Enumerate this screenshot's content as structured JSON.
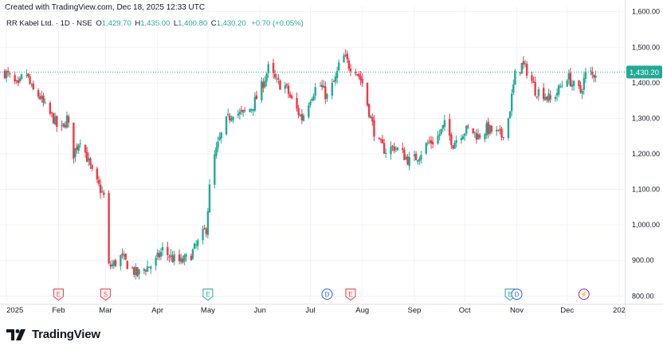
{
  "watermark_text": "Created with TradingView.com, Dec 18, 2025 12:33 UTC",
  "legend": {
    "symbol": "RR Kabel Ltd. · 1D · NSE",
    "open_label": "O",
    "open": "1,429.70",
    "high_label": "H",
    "high": "1,435.00",
    "low_label": "L",
    "low": "1,400.80",
    "close_label": "C",
    "close": "1,430.20",
    "change": "+0.70 (+0.05%)"
  },
  "footer": {
    "brand": "TradingView"
  },
  "colors": {
    "up": "#22ab94",
    "down": "#f23645",
    "last_price_line": "#22ab94",
    "grid": "#f0f3fa",
    "axis_text": "#131722"
  },
  "chart_data": {
    "type": "candlestick",
    "title": "RR Kabel Ltd. · 1D · NSE",
    "y_axis": {
      "ticks": [
        800,
        900,
        1000,
        1100,
        1200,
        1300,
        1400,
        1500,
        1600
      ],
      "tick_labels": [
        "800.00",
        "900.00",
        "1,000.00",
        "1,100.00",
        "1,200.00",
        "1,300.00",
        "1,400.00",
        "1,500.00",
        "1,600.00"
      ],
      "range": [
        785,
        1615
      ],
      "side": "right"
    },
    "x_axis": {
      "labels": [
        "2025",
        "Feb",
        "Mar",
        "Apr",
        "May",
        "Jun",
        "Jul",
        "Aug",
        "Sep",
        "Oct",
        "Nov",
        "Dec",
        "202"
      ],
      "label_dates": [
        "2025-01-01",
        "2025-02-01",
        "2025-03-01",
        "2025-04-01",
        "2025-05-01",
        "2025-06-01",
        "2025-07-01",
        "2025-08-01",
        "2025-09-01",
        "2025-10-01",
        "2025-11-01",
        "2025-12-01",
        "2026-01-01"
      ],
      "range": [
        "2024-12-31",
        "2026-01-01"
      ]
    },
    "last_price": {
      "value": 1430.2,
      "label": "1,430.20"
    },
    "events": [
      {
        "date": "2025-02-01",
        "letter": "E",
        "color": "#f23645"
      },
      {
        "date": "2025-03-01",
        "letter": "S",
        "color": "#f23645"
      },
      {
        "date": "2025-05-01",
        "letter": "E",
        "color": "#22ab94"
      },
      {
        "date": "2025-07-11",
        "letter": "D",
        "color": "#2962ff"
      },
      {
        "date": "2025-07-25",
        "letter": "E",
        "color": "#f23645"
      },
      {
        "date": "2025-10-28",
        "letter": "E",
        "color": "#22ab94"
      },
      {
        "date": "2025-11-01",
        "letter": "D",
        "color": "#2962ff"
      },
      {
        "date": "2025-12-11",
        "letter": "⚡",
        "color": "#9c27b0"
      }
    ],
    "anchors": [
      [
        "2024-12-31",
        1430
      ],
      [
        "2025-01-03",
        1415
      ],
      [
        "2025-01-08",
        1385
      ],
      [
        "2025-01-12",
        1440
      ],
      [
        "2025-01-16",
        1380
      ],
      [
        "2025-01-21",
        1360
      ],
      [
        "2025-01-25",
        1320
      ],
      [
        "2025-01-29",
        1300
      ],
      [
        "2025-02-02",
        1255
      ],
      [
        "2025-02-06",
        1300
      ],
      [
        "2025-02-10",
        1200
      ],
      [
        "2025-02-14",
        1245
      ],
      [
        "2025-02-18",
        1190
      ],
      [
        "2025-02-22",
        1130
      ],
      [
        "2025-02-26",
        1100
      ],
      [
        "2025-02-28",
        1080
      ],
      [
        "2025-03-02",
        880
      ],
      [
        "2025-03-06",
        890
      ],
      [
        "2025-03-10",
        910
      ],
      [
        "2025-03-14",
        890
      ],
      [
        "2025-03-20",
        860
      ],
      [
        "2025-03-25",
        880
      ],
      [
        "2025-03-30",
        890
      ],
      [
        "2025-04-04",
        930
      ],
      [
        "2025-04-10",
        905
      ],
      [
        "2025-04-15",
        895
      ],
      [
        "2025-04-20",
        910
      ],
      [
        "2025-04-24",
        940
      ],
      [
        "2025-04-30",
        990
      ],
      [
        "2025-05-03",
        1160
      ],
      [
        "2025-05-08",
        1240
      ],
      [
        "2025-05-12",
        1290
      ],
      [
        "2025-05-16",
        1320
      ],
      [
        "2025-05-21",
        1310
      ],
      [
        "2025-05-27",
        1330
      ],
      [
        "2025-06-01",
        1375
      ],
      [
        "2025-06-06",
        1440
      ],
      [
        "2025-06-11",
        1400
      ],
      [
        "2025-06-16",
        1390
      ],
      [
        "2025-06-21",
        1340
      ],
      [
        "2025-06-26",
        1300
      ],
      [
        "2025-07-01",
        1360
      ],
      [
        "2025-07-06",
        1400
      ],
      [
        "2025-07-11",
        1360
      ],
      [
        "2025-07-16",
        1410
      ],
      [
        "2025-07-20",
        1480
      ],
      [
        "2025-07-24",
        1450
      ],
      [
        "2025-07-28",
        1440
      ],
      [
        "2025-08-01",
        1400
      ],
      [
        "2025-08-06",
        1300
      ],
      [
        "2025-08-10",
        1230
      ],
      [
        "2025-08-15",
        1210
      ],
      [
        "2025-08-20",
        1220
      ],
      [
        "2025-08-25",
        1200
      ],
      [
        "2025-08-30",
        1175
      ],
      [
        "2025-09-04",
        1200
      ],
      [
        "2025-09-09",
        1230
      ],
      [
        "2025-09-14",
        1240
      ],
      [
        "2025-09-19",
        1280
      ],
      [
        "2025-09-24",
        1230
      ],
      [
        "2025-09-29",
        1260
      ],
      [
        "2025-10-04",
        1270
      ],
      [
        "2025-10-09",
        1250
      ],
      [
        "2025-10-14",
        1270
      ],
      [
        "2025-10-19",
        1260
      ],
      [
        "2025-10-23",
        1250
      ],
      [
        "2025-10-27",
        1300
      ],
      [
        "2025-10-31",
        1420
      ],
      [
        "2025-11-04",
        1450
      ],
      [
        "2025-11-08",
        1430
      ],
      [
        "2025-11-12",
        1380
      ],
      [
        "2025-11-17",
        1370
      ],
      [
        "2025-11-21",
        1350
      ],
      [
        "2025-11-26",
        1380
      ],
      [
        "2025-12-01",
        1420
      ],
      [
        "2025-12-05",
        1390
      ],
      [
        "2025-12-09",
        1375
      ],
      [
        "2025-12-13",
        1440
      ],
      [
        "2025-12-16",
        1420
      ],
      [
        "2025-12-18",
        1430
      ]
    ]
  }
}
